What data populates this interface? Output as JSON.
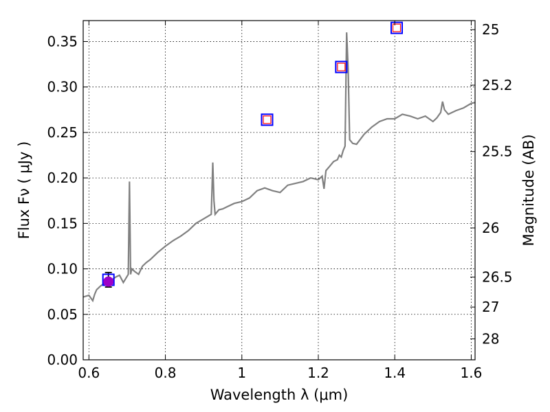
{
  "chart_data": {
    "type": "line",
    "title": "",
    "xlabel": "Wavelength  λ (μm)",
    "ylabel": "Flux  Fν  ( μJy )",
    "y2label": "Magnitude (AB)",
    "xlim": [
      0.585,
      1.61
    ],
    "ylim": [
      0.0,
      0.373
    ],
    "grid": true,
    "x_ticks": [
      0.6,
      0.8,
      1.0,
      1.2,
      1.4,
      1.6
    ],
    "x_tick_labels": [
      "0.6",
      "0.8",
      "1",
      "1.2",
      "1.4",
      "1.6"
    ],
    "y_ticks": [
      0.0,
      0.05,
      0.1,
      0.15,
      0.2,
      0.25,
      0.3,
      0.35
    ],
    "y_tick_labels": [
      "0.00",
      "0.05",
      "0.10",
      "0.15",
      "0.20",
      "0.25",
      "0.30",
      "0.35"
    ],
    "mag_ticks": [
      {
        "label": "25",
        "flux": 0.363
      },
      {
        "label": "25.2",
        "flux": 0.302
      },
      {
        "label": "25.5",
        "flux": 0.229
      },
      {
        "label": "26",
        "flux": 0.145
      },
      {
        "label": "26.5",
        "flux": 0.091
      },
      {
        "label": "27",
        "flux": 0.058
      },
      {
        "label": "28",
        "flux": 0.023
      }
    ],
    "model_spectrum": {
      "color": "#808080",
      "x": [
        0.585,
        0.6,
        0.61,
        0.615,
        0.62,
        0.63,
        0.64,
        0.65,
        0.66,
        0.67,
        0.68,
        0.69,
        0.7,
        0.703,
        0.706,
        0.709,
        0.712,
        0.72,
        0.73,
        0.74,
        0.75,
        0.76,
        0.78,
        0.8,
        0.82,
        0.84,
        0.86,
        0.88,
        0.9,
        0.92,
        0.924,
        0.927,
        0.93,
        0.934,
        0.94,
        0.95,
        0.96,
        0.98,
        1.0,
        1.02,
        1.04,
        1.06,
        1.08,
        1.1,
        1.12,
        1.14,
        1.16,
        1.18,
        1.2,
        1.21,
        1.215,
        1.22,
        1.23,
        1.24,
        1.25,
        1.255,
        1.26,
        1.265,
        1.27,
        1.274,
        1.278,
        1.282,
        1.29,
        1.3,
        1.32,
        1.34,
        1.36,
        1.38,
        1.4,
        1.42,
        1.44,
        1.46,
        1.48,
        1.5,
        1.51,
        1.52,
        1.525,
        1.53,
        1.54,
        1.56,
        1.58,
        1.6,
        1.61
      ],
      "y": [
        0.069,
        0.071,
        0.065,
        0.072,
        0.077,
        0.081,
        0.084,
        0.087,
        0.088,
        0.091,
        0.093,
        0.085,
        0.092,
        0.094,
        0.196,
        0.094,
        0.1,
        0.097,
        0.094,
        0.103,
        0.107,
        0.11,
        0.118,
        0.125,
        0.131,
        0.136,
        0.142,
        0.15,
        0.155,
        0.16,
        0.217,
        0.175,
        0.16,
        0.162,
        0.165,
        0.166,
        0.168,
        0.172,
        0.174,
        0.178,
        0.186,
        0.189,
        0.186,
        0.184,
        0.192,
        0.194,
        0.196,
        0.2,
        0.198,
        0.202,
        0.188,
        0.208,
        0.213,
        0.218,
        0.22,
        0.225,
        0.223,
        0.23,
        0.235,
        0.36,
        0.32,
        0.242,
        0.238,
        0.237,
        0.248,
        0.256,
        0.262,
        0.265,
        0.265,
        0.27,
        0.268,
        0.265,
        0.268,
        0.262,
        0.266,
        0.272,
        0.284,
        0.275,
        0.27,
        0.274,
        0.277,
        0.282,
        0.283
      ]
    },
    "points": [
      {
        "x": 0.651,
        "y": 0.088,
        "err": 0.008,
        "marker": "square",
        "stroke": "#0000ff",
        "fill": "none",
        "errorbar": true
      },
      {
        "x": 0.651,
        "y": 0.086,
        "marker": "circle",
        "fill": "#9c00c7",
        "stroke": "#9c00c7"
      },
      {
        "x": 1.066,
        "y": 0.264,
        "marker": "square",
        "stroke": "#0000ff",
        "fill": "none",
        "inner_stroke": "#ff0000"
      },
      {
        "x": 1.26,
        "y": 0.322,
        "marker": "square",
        "stroke": "#0000ff",
        "fill": "none",
        "inner_stroke": "#ff0000"
      },
      {
        "x": 1.405,
        "y": 0.365,
        "marker": "square",
        "stroke": "#0000ff",
        "fill": "none",
        "inner_stroke": "#ff0000"
      }
    ]
  }
}
